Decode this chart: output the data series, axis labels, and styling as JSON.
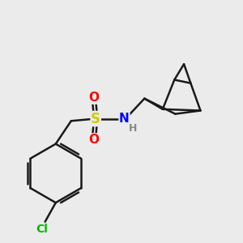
{
  "bg_color": "#ebebeb",
  "bond_color": "#1a1a1a",
  "bond_width": 1.8,
  "atom_colors": {
    "S": "#cccc00",
    "N": "#0000ff",
    "O": "#ff0000",
    "Cl": "#00bb00",
    "H": "#888888",
    "C": "#1a1a1a"
  }
}
